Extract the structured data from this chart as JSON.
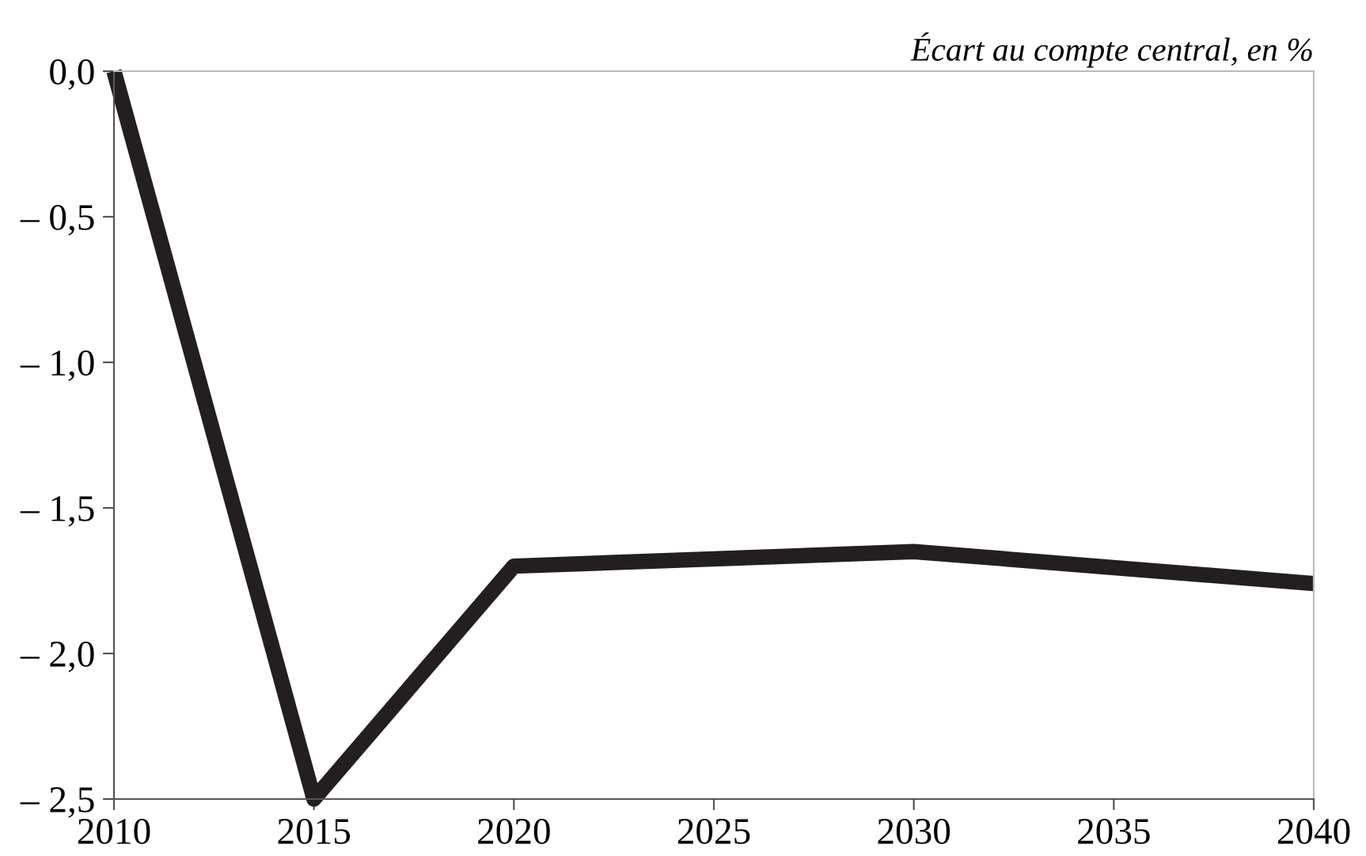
{
  "chart_data": {
    "type": "line",
    "ylabel": "Écart au compte central, en %",
    "x": [
      2010,
      2015,
      2020,
      2030,
      2040
    ],
    "series": [
      {
        "color": "#231f20",
        "values": [
          0.0,
          -2.5,
          -1.7,
          -1.65,
          -1.76
        ]
      }
    ],
    "xlim": [
      2010,
      2040
    ],
    "xticks": [
      2010,
      2015,
      2020,
      2025,
      2030,
      2035,
      2040
    ],
    "ylim": [
      -2.5,
      0.0
    ],
    "yticks": [
      {
        "value": 0.0,
        "label": "0,0"
      },
      {
        "value": -0.5,
        "label": "– 0,5"
      },
      {
        "value": -1.0,
        "label": "– 1,0"
      },
      {
        "value": -1.5,
        "label": "– 1,5"
      },
      {
        "value": -2.0,
        "label": "– 2,0"
      },
      {
        "value": -2.5,
        "label": "– 2,5"
      }
    ],
    "grid": false,
    "marker": "none",
    "line_style": "solid"
  }
}
